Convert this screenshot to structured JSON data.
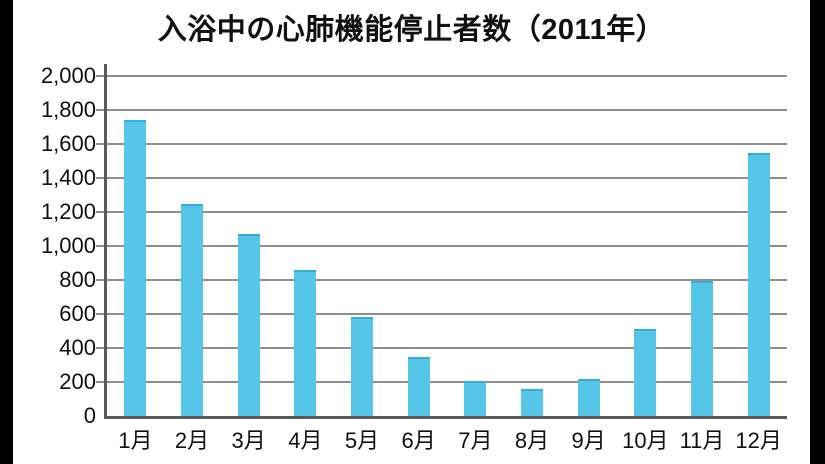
{
  "chart_data": {
    "type": "bar",
    "title": "入浴中の心肺機能停止者数（2011年）",
    "categories": [
      "1月",
      "2月",
      "3月",
      "4月",
      "5月",
      "6月",
      "7月",
      "8月",
      "9月",
      "10月",
      "11月",
      "12月"
    ],
    "values": [
      1740,
      1245,
      1070,
      860,
      585,
      350,
      205,
      160,
      215,
      510,
      795,
      1550
    ],
    "xlabel": "",
    "ylabel": "",
    "ylim": [
      0,
      2000
    ],
    "ytick_step": 200,
    "ytick_labels": [
      "0",
      "200",
      "400",
      "600",
      "800",
      "1,000",
      "1,200",
      "1,400",
      "1,600",
      "1,800",
      "2,000"
    ],
    "grid": true,
    "legend": false,
    "colors": {
      "bar_fill": "#55c5e8",
      "bar_edge": "#36aed8",
      "gridline": "#8f8f8f",
      "axis": "#5a5a5a",
      "text": "#111111",
      "background": "#ffffff",
      "letterbox": "#000000"
    }
  }
}
